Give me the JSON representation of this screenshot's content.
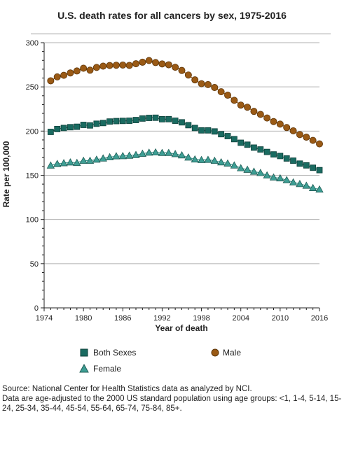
{
  "chart_data": {
    "type": "line",
    "title": "U.S. death rates for all cancers by sex, 1975-2016",
    "xlabel": "Year of death",
    "ylabel": "Rate per 100,000",
    "xlim": [
      1974,
      2016
    ],
    "ylim": [
      0,
      300
    ],
    "xticks": [
      "1974",
      "1980",
      "1986",
      "1992",
      "1998",
      "2004",
      "2010",
      "2016"
    ],
    "yticks": [
      "0",
      "50",
      "100",
      "150",
      "200",
      "250",
      "300"
    ],
    "grid": "horizontal",
    "legend_position": "bottom",
    "x": [
      1975,
      1976,
      1977,
      1978,
      1979,
      1980,
      1981,
      1982,
      1983,
      1984,
      1985,
      1986,
      1987,
      1988,
      1989,
      1990,
      1991,
      1992,
      1993,
      1994,
      1995,
      1996,
      1997,
      1998,
      1999,
      2000,
      2001,
      2002,
      2003,
      2004,
      2005,
      2006,
      2007,
      2008,
      2009,
      2010,
      2011,
      2012,
      2013,
      2014,
      2015,
      2016
    ],
    "series": [
      {
        "name": "Both Sexes",
        "marker": "square",
        "color": "#1a6b61",
        "values": [
          199.1,
          202.3,
          203.5,
          204.4,
          204.9,
          207.0,
          206.4,
          208.3,
          209.1,
          210.8,
          211.3,
          211.5,
          211.7,
          212.5,
          214.2,
          214.9,
          215.1,
          213.4,
          213.5,
          211.7,
          209.9,
          206.7,
          203.5,
          200.8,
          200.8,
          199.6,
          196.5,
          194.3,
          190.9,
          186.8,
          184.6,
          181.3,
          179.2,
          176.4,
          173.6,
          171.8,
          169.0,
          166.5,
          163.2,
          161.2,
          158.5,
          155.8
        ]
      },
      {
        "name": "Male",
        "marker": "circle",
        "color": "#9a5a15",
        "values": [
          256.9,
          261.3,
          263.1,
          265.8,
          268.0,
          271.1,
          268.9,
          272.0,
          273.5,
          274.2,
          274.5,
          274.7,
          274.3,
          276.2,
          277.9,
          279.8,
          277.5,
          276.0,
          275.0,
          272.2,
          268.6,
          263.4,
          257.9,
          253.6,
          252.6,
          249.3,
          244.5,
          240.6,
          234.8,
          229.4,
          227.0,
          222.3,
          218.9,
          214.8,
          210.8,
          207.9,
          204.0,
          200.3,
          196.0,
          193.1,
          189.5,
          185.5
        ]
      },
      {
        "name": "Female",
        "marker": "triangle",
        "color": "#3e9e94",
        "values": [
          161.1,
          162.9,
          163.8,
          164.7,
          164.1,
          166.5,
          166.5,
          167.8,
          169.1,
          170.5,
          171.6,
          171.8,
          172.3,
          173.1,
          174.5,
          175.7,
          176.0,
          175.4,
          175.4,
          174.1,
          172.7,
          170.2,
          168.0,
          167.4,
          167.6,
          166.5,
          164.8,
          163.4,
          161.2,
          158.1,
          156.4,
          154.2,
          152.7,
          149.9,
          147.6,
          146.7,
          144.6,
          142.0,
          140.2,
          138.3,
          135.7,
          134.0
        ]
      }
    ]
  },
  "source": {
    "line1": "Source: National Center for Health Statistics data as analyzed by NCI.",
    "line2": "Data are age-adjusted to the 2000 US standard population using age groups: <1, 1-4, 5-14, 15-24, 25-34, 35-44, 45-54, 55-64, 65-74, 75-84, 85+."
  }
}
